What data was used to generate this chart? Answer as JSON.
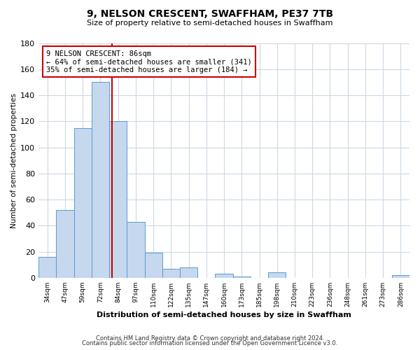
{
  "title": "9, NELSON CRESCENT, SWAFFHAM, PE37 7TB",
  "subtitle": "Size of property relative to semi-detached houses in Swaffham",
  "xlabel": "Distribution of semi-detached houses by size in Swaffham",
  "ylabel": "Number of semi-detached properties",
  "bar_labels": [
    "34sqm",
    "47sqm",
    "59sqm",
    "72sqm",
    "84sqm",
    "97sqm",
    "110sqm",
    "122sqm",
    "135sqm",
    "147sqm",
    "160sqm",
    "173sqm",
    "185sqm",
    "198sqm",
    "210sqm",
    "223sqm",
    "236sqm",
    "248sqm",
    "261sqm",
    "273sqm",
    "286sqm"
  ],
  "bar_values": [
    16,
    52,
    115,
    150,
    120,
    43,
    19,
    7,
    8,
    0,
    3,
    1,
    0,
    4,
    0,
    0,
    0,
    0,
    0,
    0,
    2
  ],
  "bar_color": "#c5d8ed",
  "bar_edge_color": "#5b9bd5",
  "ylim": [
    0,
    180
  ],
  "yticks": [
    0,
    20,
    40,
    60,
    80,
    100,
    120,
    140,
    160,
    180
  ],
  "vline_color": "#cc0000",
  "annotation_title": "9 NELSON CRESCENT: 86sqm",
  "annotation_line1": "← 64% of semi-detached houses are smaller (341)",
  "annotation_line2": "35% of semi-detached houses are larger (184) →",
  "annotation_box_color": "#ffffff",
  "annotation_box_edge": "#cc0000",
  "footer1": "Contains HM Land Registry data © Crown copyright and database right 2024.",
  "footer2": "Contains public sector information licensed under the Open Government Licence v3.0.",
  "background_color": "#ffffff",
  "grid_color": "#cdd9e5"
}
